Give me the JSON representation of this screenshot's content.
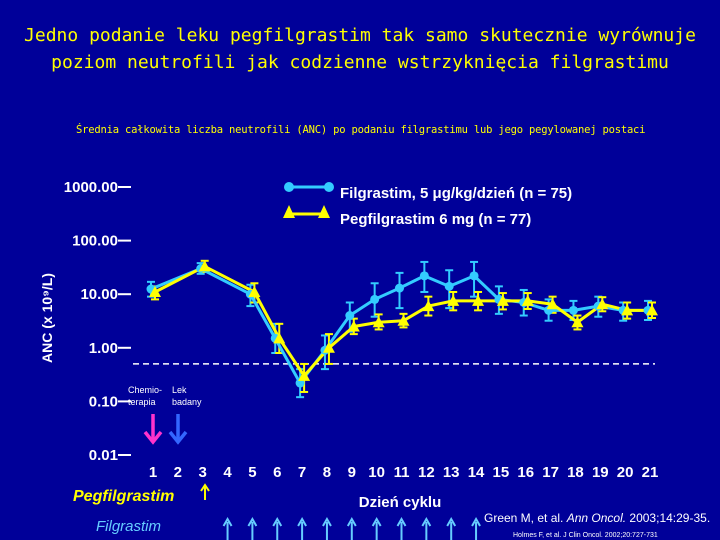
{
  "title_line1": "Jedno podanie leku pegfilgrastim tak samo skutecznie wyrównuje",
  "title_line2": "poziom neutrofili jak codzienne wstrzyknięcia filgrastimu",
  "subtitle": "Średnia całkowita liczba neutrofili (ANC) po podaniu filgrastimu lub jego pegylowanej postaci",
  "annotations": {
    "chemo_line1": "Chemio-",
    "chemo_line2": "terapia",
    "drug_line1": "Lek",
    "drug_line2": "badany",
    "pegfilgrastim_label": "Pegfilgrastim",
    "filgrastim_label": "Filgrastim",
    "ref1_prefix": "Green M, et al. ",
    "ref1_journal": "Ann Oncol.",
    "ref1_suffix": " 2003;14:29-35.",
    "ref2": "Holmes F, et al. J Clin Oncol. 2002;20:727-731"
  },
  "colors": {
    "background": "#000099",
    "title": "#ffff00",
    "filgrastim": "#33ccff",
    "pegfilgrastim": "#ffff00",
    "chemo_arrow": "#ff33cc",
    "drug_arrow": "#3366ff",
    "filgrastim_arrows": "#66ccff"
  },
  "chart_data": {
    "type": "line",
    "ylabel": "ANC (x 10⁹/L)",
    "xlabel": "Dzień cyklu",
    "y_scale": "log",
    "ylim": [
      0.01,
      1000
    ],
    "yticks": [
      "1000.00",
      "100.00",
      "10.00",
      "1.00",
      "0.10",
      "0.01"
    ],
    "x_ticks": [
      "1",
      "2",
      "3",
      "4",
      "5",
      "6",
      "7",
      "8",
      "9",
      "10",
      "11",
      "12",
      "13",
      "14",
      "15",
      "16",
      "17",
      "18",
      "19",
      "20",
      "21"
    ],
    "reference_line": 0.5,
    "legend_position": "top-right",
    "series": [
      {
        "name": "Filgrastim, 5 μg/kg/dzień (n = 75)",
        "marker": "circle",
        "x": [
          1,
          3,
          5,
          6,
          7,
          8,
          9,
          10,
          11,
          12,
          13,
          14,
          15,
          16,
          17,
          18,
          19,
          20,
          21
        ],
        "y": [
          12.5,
          30,
          10,
          1.5,
          0.22,
          0.9,
          4,
          8,
          13,
          22,
          14,
          22,
          8,
          7,
          5,
          5,
          6,
          5,
          5
        ],
        "err_low": [
          9,
          24,
          6,
          0.8,
          0.12,
          0.4,
          2,
          3.8,
          5.5,
          11,
          5.5,
          9,
          4.3,
          4,
          3.2,
          3.3,
          3.8,
          3.2,
          3.3
        ],
        "err_high": [
          17,
          38,
          15,
          2.8,
          0.4,
          1.7,
          7,
          16,
          25,
          40,
          28,
          40,
          14,
          12,
          8,
          7.5,
          9,
          7,
          7.5
        ]
      },
      {
        "name": "Pegfilgrastim 6 mg (n = 77)",
        "marker": "triangle",
        "x": [
          1,
          3,
          5,
          6,
          7,
          8,
          9,
          10,
          11,
          12,
          13,
          14,
          15,
          16,
          17,
          18,
          19,
          20,
          21
        ],
        "y": [
          11,
          33,
          11,
          1.5,
          0.3,
          1,
          2.5,
          3,
          3.2,
          6,
          7.5,
          7.5,
          7.5,
          7.5,
          6.5,
          3,
          6.5,
          5,
          5
        ],
        "err_low": [
          8,
          26,
          7,
          0.8,
          0.15,
          0.5,
          1.8,
          2.2,
          2.4,
          4,
          5,
          5,
          5.2,
          5.3,
          4.5,
          2.2,
          4.8,
          3.5,
          3.6
        ],
        "err_high": [
          14,
          42,
          16,
          2.8,
          0.5,
          1.8,
          3.5,
          4.2,
          4.3,
          9,
          11,
          11,
          10.5,
          10.5,
          9,
          4,
          8.8,
          7,
          7
        ]
      }
    ]
  }
}
